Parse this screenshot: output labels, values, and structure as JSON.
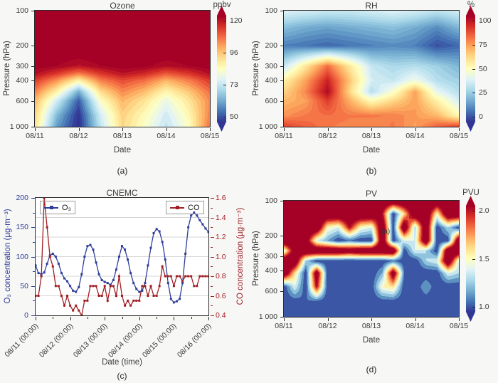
{
  "figure": {
    "background": "#f7f7f5",
    "description": "Four-panel atmospheric figure: Ozone, RH, PV pressure-time contour plots and CNEMC surface time series"
  },
  "colors": {
    "colormap_rdylbu": [
      "#313695",
      "#4575b4",
      "#74add1",
      "#abd9e9",
      "#e0f3f8",
      "#ffffbf",
      "#fee090",
      "#fdae61",
      "#f46d43",
      "#d73027",
      "#a50026"
    ],
    "o3_line": "#2e3d99",
    "co_line": "#a01f24",
    "grid": "#c9c9c9",
    "spine": "#2b2b2b",
    "axis_text": "#3a3a3a"
  },
  "chart_data": [
    {
      "id": "a",
      "type": "heatmap",
      "title": "Ozone",
      "unit": "ppbv",
      "panel_label": "(a)",
      "xlabel": "Date",
      "ylabel": "Pressure (hPa)",
      "x_ticklabels": [
        "08/11",
        "08/12",
        "08/13",
        "08/14",
        "08/15"
      ],
      "y_ticks": [
        100,
        200,
        300,
        400,
        600,
        1000
      ],
      "y_ticklabels": [
        "100",
        "200",
        "300",
        "400",
        "600",
        "1 000"
      ],
      "y_scale": "log",
      "y_range": [
        100,
        1000
      ],
      "vmin": 50,
      "vmax": 120,
      "level_step": 2.5,
      "colorbar_ticks": [
        "120",
        "96",
        "73",
        "50"
      ],
      "pressure_levels": [
        100,
        200,
        300,
        350,
        400,
        500,
        600,
        800,
        1000
      ],
      "time_days": [
        0,
        0.5,
        1,
        1.5,
        2,
        2.5,
        3,
        3.5,
        4
      ],
      "values": [
        [
          125,
          125,
          125,
          125,
          125,
          125,
          125,
          125,
          125
        ],
        [
          125,
          125,
          125,
          125,
          125,
          125,
          125,
          125,
          125
        ],
        [
          122,
          120,
          117,
          120,
          122,
          121,
          118,
          120,
          122
        ],
        [
          118,
          112,
          104,
          112,
          117,
          114,
          108,
          112,
          118
        ],
        [
          112,
          102,
          88,
          104,
          110,
          106,
          98,
          104,
          112
        ],
        [
          104,
          88,
          64,
          92,
          103,
          97,
          87,
          95,
          106
        ],
        [
          98,
          76,
          54,
          84,
          98,
          91,
          80,
          90,
          103
        ],
        [
          94,
          66,
          49,
          76,
          94,
          86,
          76,
          86,
          104
        ],
        [
          92,
          62,
          48,
          74,
          93,
          84,
          74,
          84,
          106
        ]
      ]
    },
    {
      "id": "b",
      "type": "heatmap",
      "title": "RH",
      "unit": "%",
      "panel_label": "(b)",
      "xlabel": "Date",
      "ylabel": "Pressure (hPa)",
      "x_ticklabels": [
        "08/11",
        "08/12",
        "08/13",
        "08/14",
        "08/15"
      ],
      "y_ticks": [
        100,
        200,
        300,
        400,
        600,
        1000
      ],
      "y_ticklabels": [
        "100",
        "200",
        "300",
        "400",
        "600",
        "1 000"
      ],
      "y_scale": "log",
      "y_range": [
        100,
        1000
      ],
      "vmin": 0,
      "vmax": 100,
      "level_step": 2.5,
      "colorbar_ticks": [
        "100",
        "75",
        "50",
        "25",
        "0"
      ],
      "pressure_levels": [
        100,
        140,
        200,
        300,
        400,
        500,
        600,
        800,
        1000
      ],
      "time_days": [
        0,
        0.5,
        1,
        1.5,
        2,
        2.5,
        3,
        3.5,
        4
      ],
      "values": [
        [
          40,
          38,
          36,
          36,
          38,
          40,
          38,
          34,
          38
        ],
        [
          24,
          20,
          18,
          20,
          22,
          24,
          20,
          14,
          22
        ],
        [
          12,
          10,
          8,
          10,
          12,
          14,
          12,
          4,
          8
        ],
        [
          35,
          58,
          80,
          58,
          35,
          30,
          32,
          28,
          22
        ],
        [
          55,
          72,
          93,
          66,
          38,
          35,
          45,
          32,
          28
        ],
        [
          62,
          76,
          98,
          62,
          32,
          48,
          72,
          42,
          32
        ],
        [
          68,
          72,
          88,
          70,
          52,
          62,
          72,
          55,
          38
        ],
        [
          74,
          78,
          80,
          78,
          78,
          77,
          73,
          68,
          52
        ],
        [
          88,
          82,
          78,
          76,
          75,
          78,
          72,
          82,
          88
        ]
      ]
    },
    {
      "id": "c",
      "type": "line",
      "title": "CNEMC",
      "panel_label": "(c)",
      "xlabel": "Date (time)",
      "ylabel_left": "O₃ concentration (µg·m⁻³)",
      "ylabel_right": "CO concentration (µg·m⁻³)",
      "x_ticklabels": [
        "08/11 (00:00)",
        "08/12 (00:00)",
        "08/13 (00:00)",
        "08/14 (00:00)",
        "08/15 (00:00)",
        "08/16 (00:00)"
      ],
      "y_left": {
        "min": 0,
        "max": 200,
        "ticks": [
          "0",
          "50",
          "100",
          "150",
          "200"
        ],
        "minor_step": 25
      },
      "y_right": {
        "min": 0.4,
        "max": 1.6,
        "ticks": [
          "0.4",
          "0.6",
          "0.8",
          "1.0",
          "1.2",
          "1.4",
          "1.6"
        ],
        "minor_step": 0.1
      },
      "x_total_hours": 120,
      "x_hours_step": 2,
      "series": [
        {
          "name": "O₃",
          "axis": "left",
          "values": [
            85,
            72,
            70,
            73,
            88,
            102,
            105,
            100,
            88,
            72,
            63,
            58,
            50,
            42,
            40,
            48,
            70,
            100,
            118,
            120,
            112,
            90,
            70,
            60,
            57,
            55,
            52,
            60,
            78,
            100,
            118,
            112,
            95,
            72,
            55,
            45,
            40,
            42,
            55,
            85,
            115,
            140,
            147,
            143,
            125,
            95,
            55,
            28,
            22,
            24,
            28,
            55,
            105,
            150,
            170,
            175,
            170,
            162,
            155,
            148,
            142
          ]
        },
        {
          "name": "CO",
          "axis": "right",
          "values": [
            0.6,
            0.6,
            0.8,
            1.6,
            1.3,
            1.0,
            0.9,
            0.7,
            0.7,
            0.6,
            0.5,
            0.6,
            0.5,
            0.45,
            0.5,
            0.45,
            0.4,
            0.55,
            0.55,
            0.7,
            0.7,
            0.7,
            0.6,
            0.6,
            0.7,
            0.55,
            0.7,
            0.7,
            0.6,
            0.8,
            0.6,
            0.5,
            0.55,
            0.5,
            0.55,
            0.55,
            0.55,
            0.7,
            0.7,
            0.6,
            0.7,
            0.6,
            0.6,
            0.7,
            0.9,
            0.8,
            0.8,
            0.8,
            0.7,
            0.8,
            0.8,
            0.75,
            0.8,
            0.8,
            0.8,
            0.7,
            0.7,
            0.8,
            0.8,
            0.8,
            0.8
          ]
        }
      ]
    },
    {
      "id": "d",
      "type": "heatmap",
      "title": "PV",
      "unit": "PVU",
      "panel_label": "(d)",
      "xlabel": "Date",
      "ylabel": "Pressure (hPa)",
      "annotation": {
        "text": "(a)"
      },
      "x_ticklabels": [
        "08/11",
        "08/12",
        "08/13",
        "08/14",
        "08/15"
      ],
      "y_ticks": [
        100,
        200,
        300,
        400,
        600,
        1000
      ],
      "y_ticklabels": [
        "100",
        "200",
        "300",
        "400",
        "600",
        "1 000"
      ],
      "y_scale": "log",
      "y_range": [
        100,
        1000
      ],
      "vmin": 1.0,
      "vmax": 2.0,
      "level_step": 0.1,
      "colorbar_ticks": [
        "2.0",
        "1.5",
        "1.0"
      ],
      "pressure_levels": [
        100,
        130,
        170,
        220,
        270,
        330,
        420,
        550,
        750,
        1000
      ],
      "time_days": [
        0,
        0.25,
        0.5,
        0.75,
        1,
        1.25,
        1.5,
        1.75,
        2,
        2.25,
        2.5,
        2.75,
        3,
        3.25,
        3.5,
        3.75,
        4
      ],
      "values": [
        [
          2.3,
          2.3,
          2.3,
          2.3,
          2.3,
          2.3,
          2.3,
          2.3,
          2.3,
          2.3,
          2.3,
          2.3,
          2.3,
          2.3,
          2.3,
          2.3,
          2.3
        ],
        [
          2.3,
          2.3,
          2.3,
          2.3,
          2.3,
          2.3,
          2.3,
          2.3,
          2.3,
          2.0,
          1.0,
          1.6,
          2.3,
          2.3,
          1.5,
          2.3,
          2.3
        ],
        [
          2.3,
          2.3,
          2.3,
          2.3,
          1.5,
          1.4,
          2.0,
          1.5,
          1.4,
          2.3,
          1.0,
          2.3,
          1.3,
          2.3,
          1.0,
          1.3,
          1.0
        ],
        [
          2.3,
          2.3,
          2.2,
          1.4,
          1.2,
          1.0,
          1.1,
          1.0,
          1.0,
          2.3,
          1.0,
          1.4,
          1.4,
          2.3,
          1.0,
          1.0,
          2.3
        ],
        [
          1.4,
          2.2,
          2.3,
          2.3,
          2.3,
          2.3,
          2.2,
          2.3,
          2.3,
          2.3,
          2.3,
          1.0,
          1.4,
          1.3,
          1.0,
          2.3,
          2.3
        ],
        [
          2.3,
          2.3,
          1.3,
          1.0,
          1.0,
          1.0,
          1.0,
          1.0,
          1.0,
          1.0,
          1.1,
          1.0,
          1.0,
          1.3,
          1.4,
          2.3,
          1.4
        ],
        [
          2.3,
          1.6,
          1.0,
          2.2,
          1.0,
          1.0,
          1.0,
          1.0,
          1.0,
          1.2,
          2.2,
          1.1,
          1.0,
          1.0,
          1.0,
          1.4,
          1.3
        ],
        [
          1.0,
          1.4,
          1.0,
          2.0,
          1.0,
          1.0,
          1.0,
          1.0,
          1.0,
          1.5,
          1.6,
          1.0,
          1.0,
          1.2,
          1.0,
          1.0,
          1.0
        ],
        [
          1.0,
          1.0,
          1.1,
          1.0,
          1.0,
          1.0,
          1.0,
          1.0,
          1.0,
          1.0,
          1.0,
          1.0,
          1.0,
          1.0,
          1.0,
          1.0,
          1.0
        ],
        [
          1.0,
          1.0,
          1.0,
          1.0,
          1.0,
          1.0,
          1.0,
          1.0,
          1.0,
          1.0,
          1.0,
          1.0,
          1.0,
          1.0,
          1.0,
          1.0,
          1.0
        ]
      ]
    }
  ]
}
